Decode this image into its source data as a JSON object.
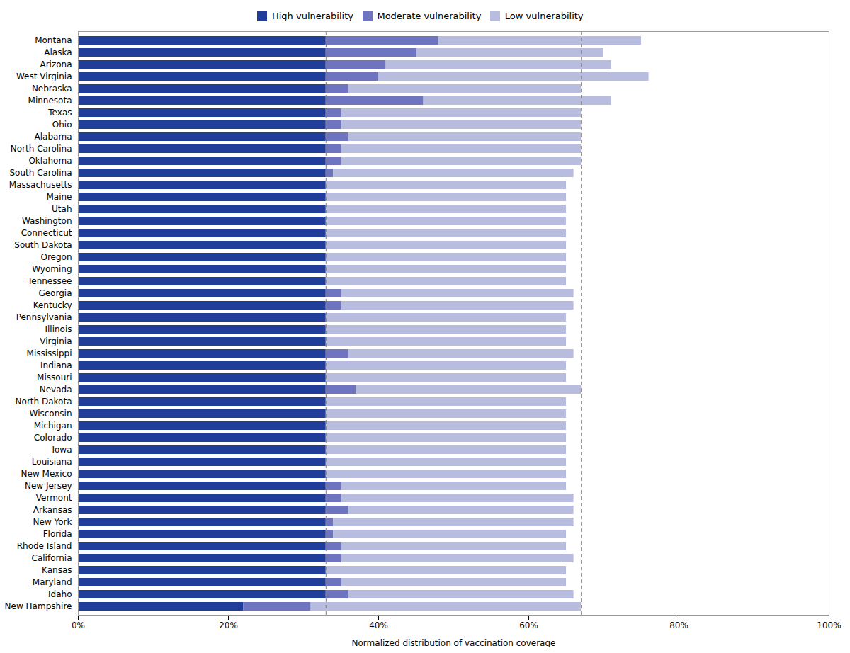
{
  "chart_data": {
    "type": "bar",
    "orientation": "horizontal",
    "stacked": true,
    "xlabel": "Normalized distribution of vaccination coverage",
    "categories": [
      "Montana",
      "Alaska",
      "Arizona",
      "West Virginia",
      "Nebraska",
      "Minnesota",
      "Texas",
      "Ohio",
      "Alabama",
      "North Carolina",
      "Oklahoma",
      "South Carolina",
      "Massachusetts",
      "Maine",
      "Utah",
      "Washington",
      "Connecticut",
      "South Dakota",
      "Oregon",
      "Wyoming",
      "Tennessee",
      "Georgia",
      "Kentucky",
      "Pennsylvania",
      "Illinois",
      "Virginia",
      "Mississippi",
      "Indiana",
      "Missouri",
      "Nevada",
      "North Dakota",
      "Wisconsin",
      "Michigan",
      "Colorado",
      "Iowa",
      "Louisiana",
      "New Mexico",
      "New Jersey",
      "Vermont",
      "Arkansas",
      "New York",
      "Florida",
      "Rhode Island",
      "California",
      "Kansas",
      "Maryland",
      "Idaho",
      "New Hampshire"
    ],
    "series": [
      {
        "name": "High vulnerability",
        "color": "#1f3d99",
        "values": [
          33,
          33,
          33,
          33,
          33,
          33,
          33,
          33,
          33,
          33,
          33,
          33,
          33,
          33,
          33,
          33,
          33,
          33,
          33,
          33,
          33,
          33,
          33,
          33,
          33,
          33,
          33,
          33,
          33,
          33,
          33,
          33,
          33,
          33,
          33,
          33,
          33,
          33,
          33,
          33,
          33,
          33,
          33,
          33,
          33,
          33,
          33,
          22
        ]
      },
      {
        "name": "Moderate vulnerability",
        "color": "#6e74c0",
        "values": [
          15,
          12,
          8,
          7,
          3,
          13,
          2,
          2,
          3,
          2,
          2,
          1,
          0,
          0,
          0,
          0,
          0,
          0,
          0,
          0,
          0,
          2,
          2,
          0,
          0,
          0,
          3,
          0,
          0,
          4,
          0,
          0,
          0,
          0,
          0,
          0,
          0,
          2,
          2,
          3,
          1,
          1,
          2,
          2,
          0,
          2,
          3,
          9
        ]
      },
      {
        "name": "Low vulnerability",
        "color": "#b8bde0",
        "values": [
          27,
          25,
          30,
          36,
          31,
          25,
          32,
          32,
          31,
          32,
          32,
          32,
          32,
          32,
          32,
          32,
          32,
          32,
          32,
          32,
          32,
          31,
          31,
          32,
          32,
          32,
          30,
          32,
          32,
          30,
          32,
          32,
          32,
          32,
          32,
          32,
          32,
          30,
          31,
          30,
          32,
          31,
          30,
          31,
          32,
          30,
          30,
          36
        ]
      }
    ],
    "vlines": [
      33,
      67
    ],
    "xlim": [
      0,
      100
    ],
    "xticks": [
      {
        "value": 0,
        "label": "0%"
      },
      {
        "value": 20,
        "label": "20%"
      },
      {
        "value": 40,
        "label": "40%"
      },
      {
        "value": 60,
        "label": "60%"
      },
      {
        "value": 80,
        "label": "80%"
      },
      {
        "value": 100,
        "label": "100%"
      }
    ],
    "legend": "top",
    "grid": false
  }
}
